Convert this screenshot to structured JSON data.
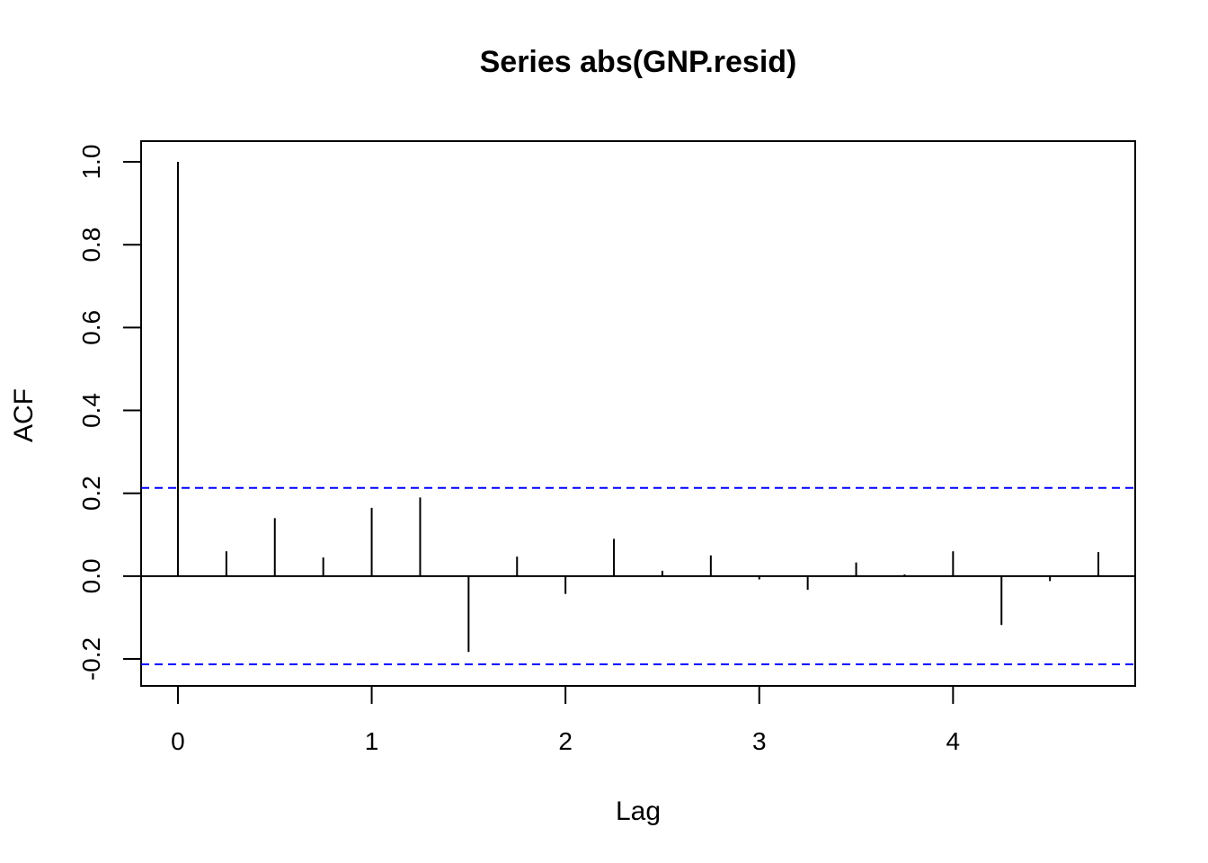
{
  "chart_data": {
    "type": "bar",
    "title": "Series  abs(GNP.resid)",
    "xlabel": "Lag",
    "ylabel": "ACF",
    "x": [
      0,
      0.25,
      0.5,
      0.75,
      1,
      1.25,
      1.5,
      1.75,
      2,
      2.25,
      2.5,
      2.75,
      3,
      3.25,
      3.5,
      3.75,
      4,
      4.25,
      4.5,
      4.75
    ],
    "values": [
      1.0,
      0.06,
      0.14,
      0.045,
      0.165,
      0.19,
      -0.183,
      0.047,
      -0.043,
      0.09,
      0.013,
      0.05,
      -0.008,
      -0.033,
      0.033,
      0.004,
      0.06,
      -0.118,
      -0.012,
      0.058
    ],
    "confidence_band": [
      0.213,
      -0.213
    ],
    "xlim": [
      -0.19,
      4.94
    ],
    "ylim": [
      -0.265,
      1.05
    ],
    "x_ticks": [
      "0",
      "1",
      "2",
      "3",
      "4"
    ],
    "y_ticks": [
      "-0.2",
      "0.0",
      "0.2",
      "0.4",
      "0.6",
      "0.8",
      "1.0"
    ],
    "grid": false,
    "colors": {
      "stems": "#000000",
      "confidence": "#0000ff",
      "frame": "#000000"
    }
  }
}
